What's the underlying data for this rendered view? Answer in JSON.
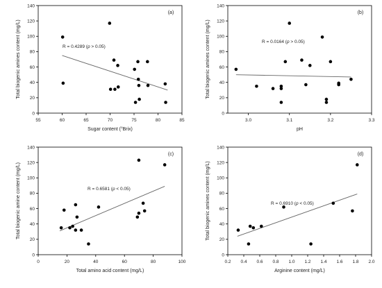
{
  "chart_data": [
    {
      "panel_label": "(a)",
      "type": "scatter",
      "ylabel": "Total biogenic amines content (mg/L)",
      "xlabel_main": "Sugar content (",
      "xlabel_sup": "o",
      "xlabel_tail": "Brix)",
      "annotation_pre": "R = 0.4289 (",
      "annotation_italic": "p",
      "annotation_post": " > 0.05)",
      "xlim": [
        55,
        85
      ],
      "ylim": [
        0,
        140
      ],
      "xticks": [
        "55",
        "60",
        "65",
        "70",
        "75",
        "80",
        "85"
      ],
      "yticks": [
        "0",
        "20",
        "40",
        "60",
        "80",
        "100",
        "120",
        "140"
      ],
      "trendline": {
        "x": [
          60,
          82
        ],
        "y": [
          75,
          30
        ]
      },
      "points": [
        {
          "x": 60.1,
          "y": 99
        },
        {
          "x": 60.2,
          "y": 39
        },
        {
          "x": 69.9,
          "y": 117
        },
        {
          "x": 70.1,
          "y": 31
        },
        {
          "x": 70.8,
          "y": 69
        },
        {
          "x": 71.0,
          "y": 31
        },
        {
          "x": 71.6,
          "y": 62
        },
        {
          "x": 71.7,
          "y": 34
        },
        {
          "x": 75.1,
          "y": 57
        },
        {
          "x": 75.3,
          "y": 14
        },
        {
          "x": 75.8,
          "y": 67
        },
        {
          "x": 75.9,
          "y": 44
        },
        {
          "x": 76.0,
          "y": 36
        },
        {
          "x": 76.1,
          "y": 18
        },
        {
          "x": 77.8,
          "y": 67
        },
        {
          "x": 77.9,
          "y": 36
        },
        {
          "x": 81.5,
          "y": 38
        },
        {
          "x": 81.6,
          "y": 14
        }
      ]
    },
    {
      "panel_label": "(b)",
      "type": "scatter",
      "ylabel": "Total biogenic amines content (mg/L)",
      "xlabel_main": "pH",
      "xlabel_sup": "",
      "xlabel_tail": "",
      "annotation_pre": "R = 0.0164 (",
      "annotation_italic": "p",
      "annotation_post": " > 0.05)",
      "xlim": [
        2.95,
        3.3
      ],
      "ylim": [
        0,
        140
      ],
      "xticks": [
        "3.0",
        "3.1",
        "3.2",
        "3.3"
      ],
      "yticks": [
        "0",
        "20",
        "40",
        "60",
        "80",
        "100",
        "120",
        "140"
      ],
      "trendline": {
        "x": [
          2.97,
          3.25
        ],
        "y": [
          50,
          47
        ]
      },
      "points": [
        {
          "x": 2.97,
          "y": 57
        },
        {
          "x": 3.02,
          "y": 35
        },
        {
          "x": 3.06,
          "y": 32
        },
        {
          "x": 3.08,
          "y": 35
        },
        {
          "x": 3.08,
          "y": 32
        },
        {
          "x": 3.08,
          "y": 14
        },
        {
          "x": 3.09,
          "y": 67
        },
        {
          "x": 3.1,
          "y": 117
        },
        {
          "x": 3.13,
          "y": 69
        },
        {
          "x": 3.14,
          "y": 37
        },
        {
          "x": 3.15,
          "y": 62
        },
        {
          "x": 3.18,
          "y": 99
        },
        {
          "x": 3.19,
          "y": 18
        },
        {
          "x": 3.19,
          "y": 14
        },
        {
          "x": 3.2,
          "y": 67
        },
        {
          "x": 3.22,
          "y": 39
        },
        {
          "x": 3.22,
          "y": 37
        },
        {
          "x": 3.25,
          "y": 44
        }
      ]
    },
    {
      "panel_label": "(c)",
      "type": "scatter",
      "ylabel": "Total biogenic amine content (mg/L)",
      "xlabel_main": "Total amino acid content (mg/L)",
      "xlabel_sup": "",
      "xlabel_tail": "",
      "annotation_pre": "R = 0.6581 (",
      "annotation_italic": "p",
      "annotation_post": " < 0.05)",
      "xlim": [
        0,
        100
      ],
      "ylim": [
        0,
        140
      ],
      "xticks": [
        "0",
        "20",
        "40",
        "60",
        "80",
        "100"
      ],
      "yticks": [
        "0",
        "20",
        "40",
        "60",
        "80",
        "100",
        "120",
        "140"
      ],
      "trendline": {
        "x": [
          15,
          88
        ],
        "y": [
          31,
          89
        ]
      },
      "points": [
        {
          "x": 16,
          "y": 35
        },
        {
          "x": 18,
          "y": 58
        },
        {
          "x": 22,
          "y": 35
        },
        {
          "x": 24,
          "y": 37
        },
        {
          "x": 26,
          "y": 65
        },
        {
          "x": 26,
          "y": 32
        },
        {
          "x": 27,
          "y": 49
        },
        {
          "x": 30,
          "y": 32
        },
        {
          "x": 35,
          "y": 14
        },
        {
          "x": 42,
          "y": 62
        },
        {
          "x": 69,
          "y": 49
        },
        {
          "x": 70,
          "y": 54
        },
        {
          "x": 70,
          "y": 123
        },
        {
          "x": 73,
          "y": 67
        },
        {
          "x": 74,
          "y": 57
        },
        {
          "x": 88,
          "y": 117
        }
      ]
    },
    {
      "panel_label": "(d)",
      "type": "scatter",
      "ylabel": "Total biogenic amines content (mg/L)",
      "xlabel_main": "Arginine content (mg/L)",
      "xlabel_sup": "",
      "xlabel_tail": "",
      "annotation_pre": "R = 0.6910 (",
      "annotation_italic": "p",
      "annotation_post": " < 0.05)",
      "xlim": [
        0.2,
        2.0
      ],
      "ylim": [
        0,
        140
      ],
      "xticks": [
        "0.2",
        "0.4",
        "0.6",
        "0.8",
        "1.0",
        "1.2",
        "1.4",
        "1.6",
        "1.8",
        "2.0"
      ],
      "yticks": [
        "0",
        "20",
        "40",
        "60",
        "80",
        "100",
        "120",
        "140"
      ],
      "trendline": {
        "x": [
          0.32,
          1.82
        ],
        "y": [
          24,
          79
        ]
      },
      "points": [
        {
          "x": 0.33,
          "y": 32
        },
        {
          "x": 0.46,
          "y": 14
        },
        {
          "x": 0.48,
          "y": 37
        },
        {
          "x": 0.52,
          "y": 35
        },
        {
          "x": 0.62,
          "y": 37
        },
        {
          "x": 0.9,
          "y": 62
        },
        {
          "x": 1.24,
          "y": 14
        },
        {
          "x": 1.52,
          "y": 67
        },
        {
          "x": 1.76,
          "y": 57
        },
        {
          "x": 1.82,
          "y": 117
        }
      ]
    }
  ]
}
